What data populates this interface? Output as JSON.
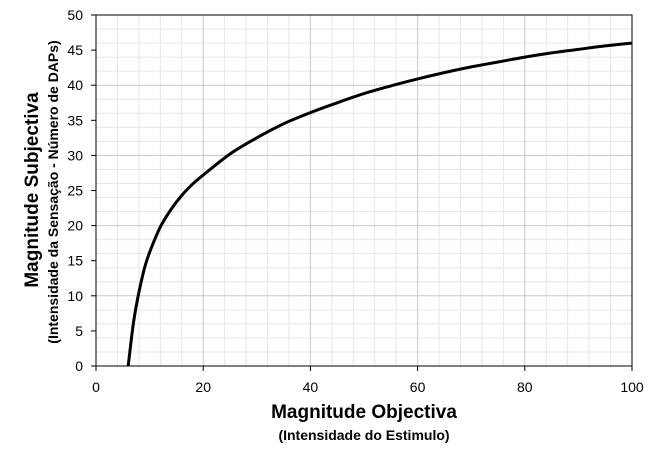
{
  "chart_data": {
    "type": "line",
    "xlabel": "Magnitude Objectiva",
    "xlabel_sub": "(Intensidade do Estimulo)",
    "ylabel": "Magnitude Subjectiva",
    "ylabel_sub": "(Intensidade da Sensação - Número de DAPs)",
    "xlim": [
      0,
      100
    ],
    "ylim": [
      0,
      50
    ],
    "xticks": [
      0,
      20,
      40,
      60,
      80,
      100
    ],
    "yticks": [
      0,
      5,
      10,
      15,
      20,
      25,
      30,
      35,
      40,
      45,
      50
    ],
    "grid": true,
    "legend": "none",
    "series": [
      {
        "color": "#000000",
        "x": [
          6,
          7,
          8,
          9,
          10,
          12,
          14,
          16,
          18,
          20,
          25,
          30,
          35,
          40,
          45,
          50,
          55,
          60,
          65,
          70,
          75,
          80,
          85,
          90,
          95,
          100
        ],
        "y": [
          0,
          6.2,
          10.5,
          13.8,
          16.2,
          19.8,
          22.3,
          24.3,
          25.9,
          27.2,
          30.2,
          32.5,
          34.5,
          36.1,
          37.5,
          38.8,
          39.9,
          40.9,
          41.8,
          42.6,
          43.3,
          44.0,
          44.6,
          45.1,
          45.6,
          46.0
        ]
      }
    ]
  }
}
